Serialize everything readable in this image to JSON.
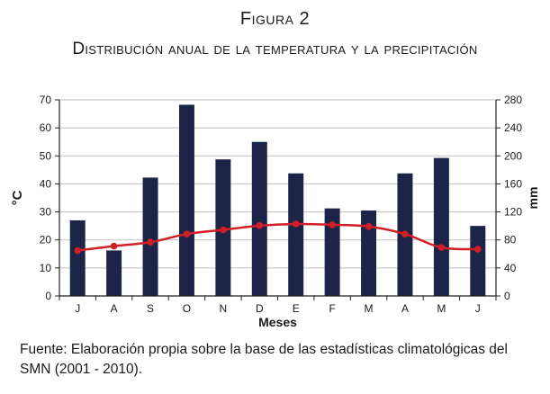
{
  "figure": {
    "number": "Figura 2",
    "title": "Distribución anual de la temperatura y la precipitación",
    "caption": "Fuente: Elaboración propia sobre la base de las estadísticas climatológicas del SMN (2001 - 2010)."
  },
  "colors": {
    "bars": "#1c2447",
    "line": "#d11f26",
    "axis": "#222222",
    "grid": "#bfbfbf"
  },
  "chart_data": {
    "type": "bar",
    "categories": [
      "J",
      "A",
      "S",
      "O",
      "N",
      "D",
      "E",
      "F",
      "M",
      "A",
      "M",
      "J"
    ],
    "xlabel": "Meses",
    "ylabel_left": "°C",
    "ylabel_right": "mm",
    "y_left_lim": [
      0,
      70
    ],
    "y_left_ticks": [
      0,
      10,
      20,
      30,
      40,
      50,
      60,
      70
    ],
    "y_right_lim": [
      0,
      280
    ],
    "y_right_ticks": [
      0,
      40,
      80,
      120,
      160,
      200,
      240,
      280
    ],
    "grid": true,
    "series": [
      {
        "kind": "bar",
        "axis": "right",
        "values": [
          108,
          65,
          169,
          273,
          195,
          220,
          175,
          125,
          122,
          175,
          197,
          100
        ]
      },
      {
        "kind": "line",
        "axis": "left",
        "values": [
          16.2,
          17.8,
          19.2,
          22.1,
          23.6,
          25.1,
          25.7,
          25.4,
          24.8,
          22.1,
          17.3,
          16.7
        ]
      }
    ]
  }
}
